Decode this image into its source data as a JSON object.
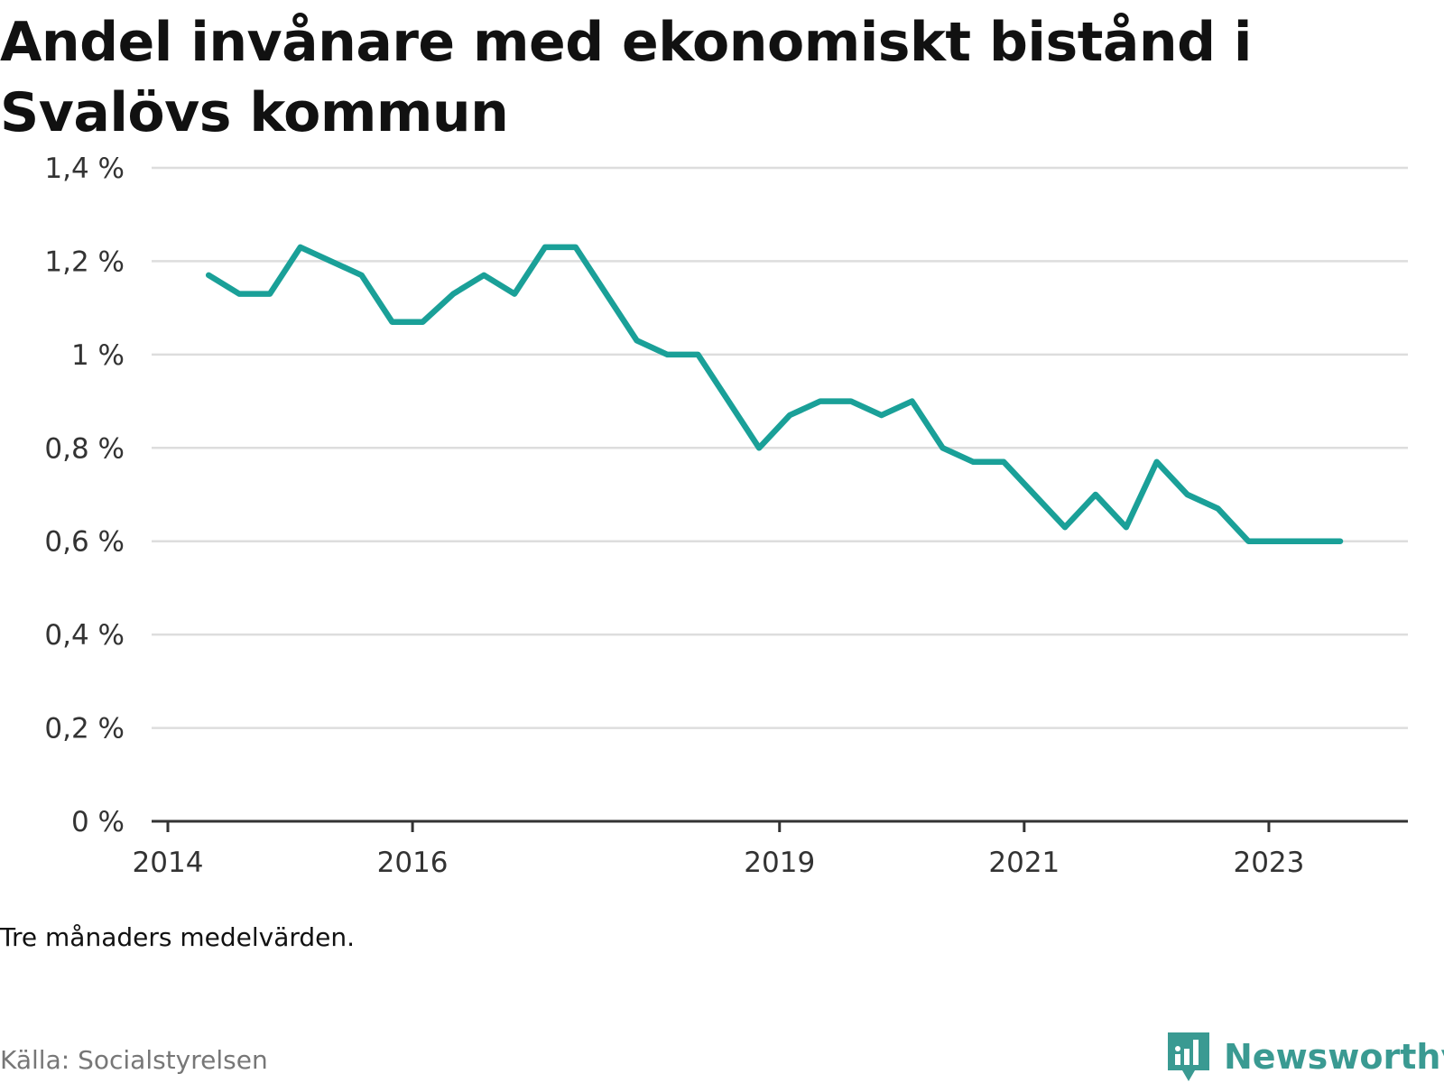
{
  "title": "Andel invånare med ekonomiskt bistånd i Svalövs kommun",
  "note": "Tre månaders medelvärden.",
  "source": "Källa: Socialstyrelsen",
  "brand": {
    "name": "Newsworthy",
    "icon": "newsworthy-logo-icon",
    "color": "#3a9a92"
  },
  "colors": {
    "line": "#1aa098",
    "grid": "#dddddd",
    "axis": "#333333"
  },
  "chart_data": {
    "type": "line",
    "title": "Andel invånare med ekonomiskt bistånd i Svalövs kommun",
    "xlabel": "",
    "ylabel": "",
    "x_ticks": [
      "2014",
      "2016",
      "2019",
      "2021",
      "2023"
    ],
    "y_ticks": [
      "0 %",
      "0,2 %",
      "0,4 %",
      "0,6 %",
      "0,8 %",
      "1 %",
      "1,2 %",
      "1,4 %"
    ],
    "ylim": [
      0,
      1.4
    ],
    "xlim": [
      "2014-01",
      "2024-02"
    ],
    "grid": true,
    "series": [
      {
        "name": "",
        "x": [
          "2014-05",
          "2014-08",
          "2014-11",
          "2015-02",
          "2015-05",
          "2015-08",
          "2015-11",
          "2016-02",
          "2016-05",
          "2016-08",
          "2016-11",
          "2017-02",
          "2017-05",
          "2017-08",
          "2017-11",
          "2018-02",
          "2018-05",
          "2018-08",
          "2018-11",
          "2019-02",
          "2019-05",
          "2019-08",
          "2019-11",
          "2020-02",
          "2020-05",
          "2020-08",
          "2020-11",
          "2021-02",
          "2021-05",
          "2021-08",
          "2021-11",
          "2022-02",
          "2022-05",
          "2022-08",
          "2022-11",
          "2023-02",
          "2023-05",
          "2023-08"
        ],
        "values": [
          1.17,
          1.13,
          1.13,
          1.23,
          1.2,
          1.17,
          1.07,
          1.07,
          1.13,
          1.17,
          1.13,
          1.23,
          1.23,
          1.13,
          1.03,
          1.0,
          1.0,
          0.9,
          0.8,
          0.87,
          0.9,
          0.9,
          0.87,
          0.9,
          0.8,
          0.77,
          0.77,
          0.7,
          0.63,
          0.7,
          0.63,
          0.77,
          0.7,
          0.67,
          0.6,
          0.6,
          0.6,
          0.6
        ]
      }
    ]
  }
}
